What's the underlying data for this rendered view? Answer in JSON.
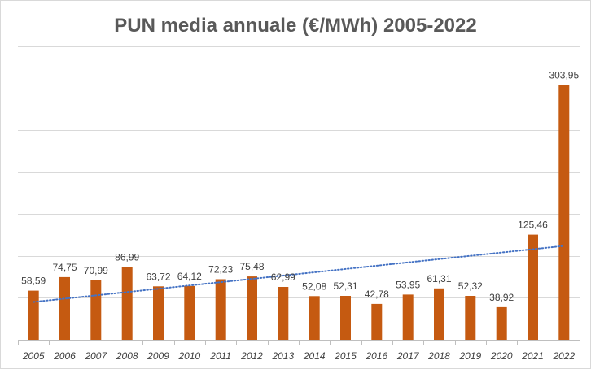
{
  "chart_data": {
    "type": "bar",
    "title": "PUN media annuale (€/MWh) 2005-2022",
    "xlabel": "",
    "ylabel": "",
    "categories": [
      "2005",
      "2006",
      "2007",
      "2008",
      "2009",
      "2010",
      "2011",
      "2012",
      "2013",
      "2014",
      "2015",
      "2016",
      "2017",
      "2018",
      "2019",
      "2020",
      "2021",
      "2022"
    ],
    "series": [
      {
        "values": [
          58.59,
          74.75,
          70.99,
          86.99,
          63.72,
          64.12,
          72.23,
          75.48,
          62.99,
          52.08,
          52.31,
          42.78,
          53.95,
          61.31,
          52.32,
          38.92,
          125.46,
          303.95
        ],
        "labels": [
          "58,59",
          "74,75",
          "70,99",
          "86,99",
          "63,72",
          "64,12",
          "72,23",
          "75,48",
          "62,99",
          "52,08",
          "52,31",
          "42,78",
          "53,95",
          "61,31",
          "52,32",
          "38,92",
          "125,46",
          "303,95"
        ]
      }
    ],
    "ylim": [
      0,
      350
    ],
    "ytick_step": 50,
    "show_y_tick_labels": false,
    "grid": "horizontal",
    "trendline": "linear, dotted",
    "bar_color": "#c55a11",
    "trend_color": "#4472c4"
  }
}
